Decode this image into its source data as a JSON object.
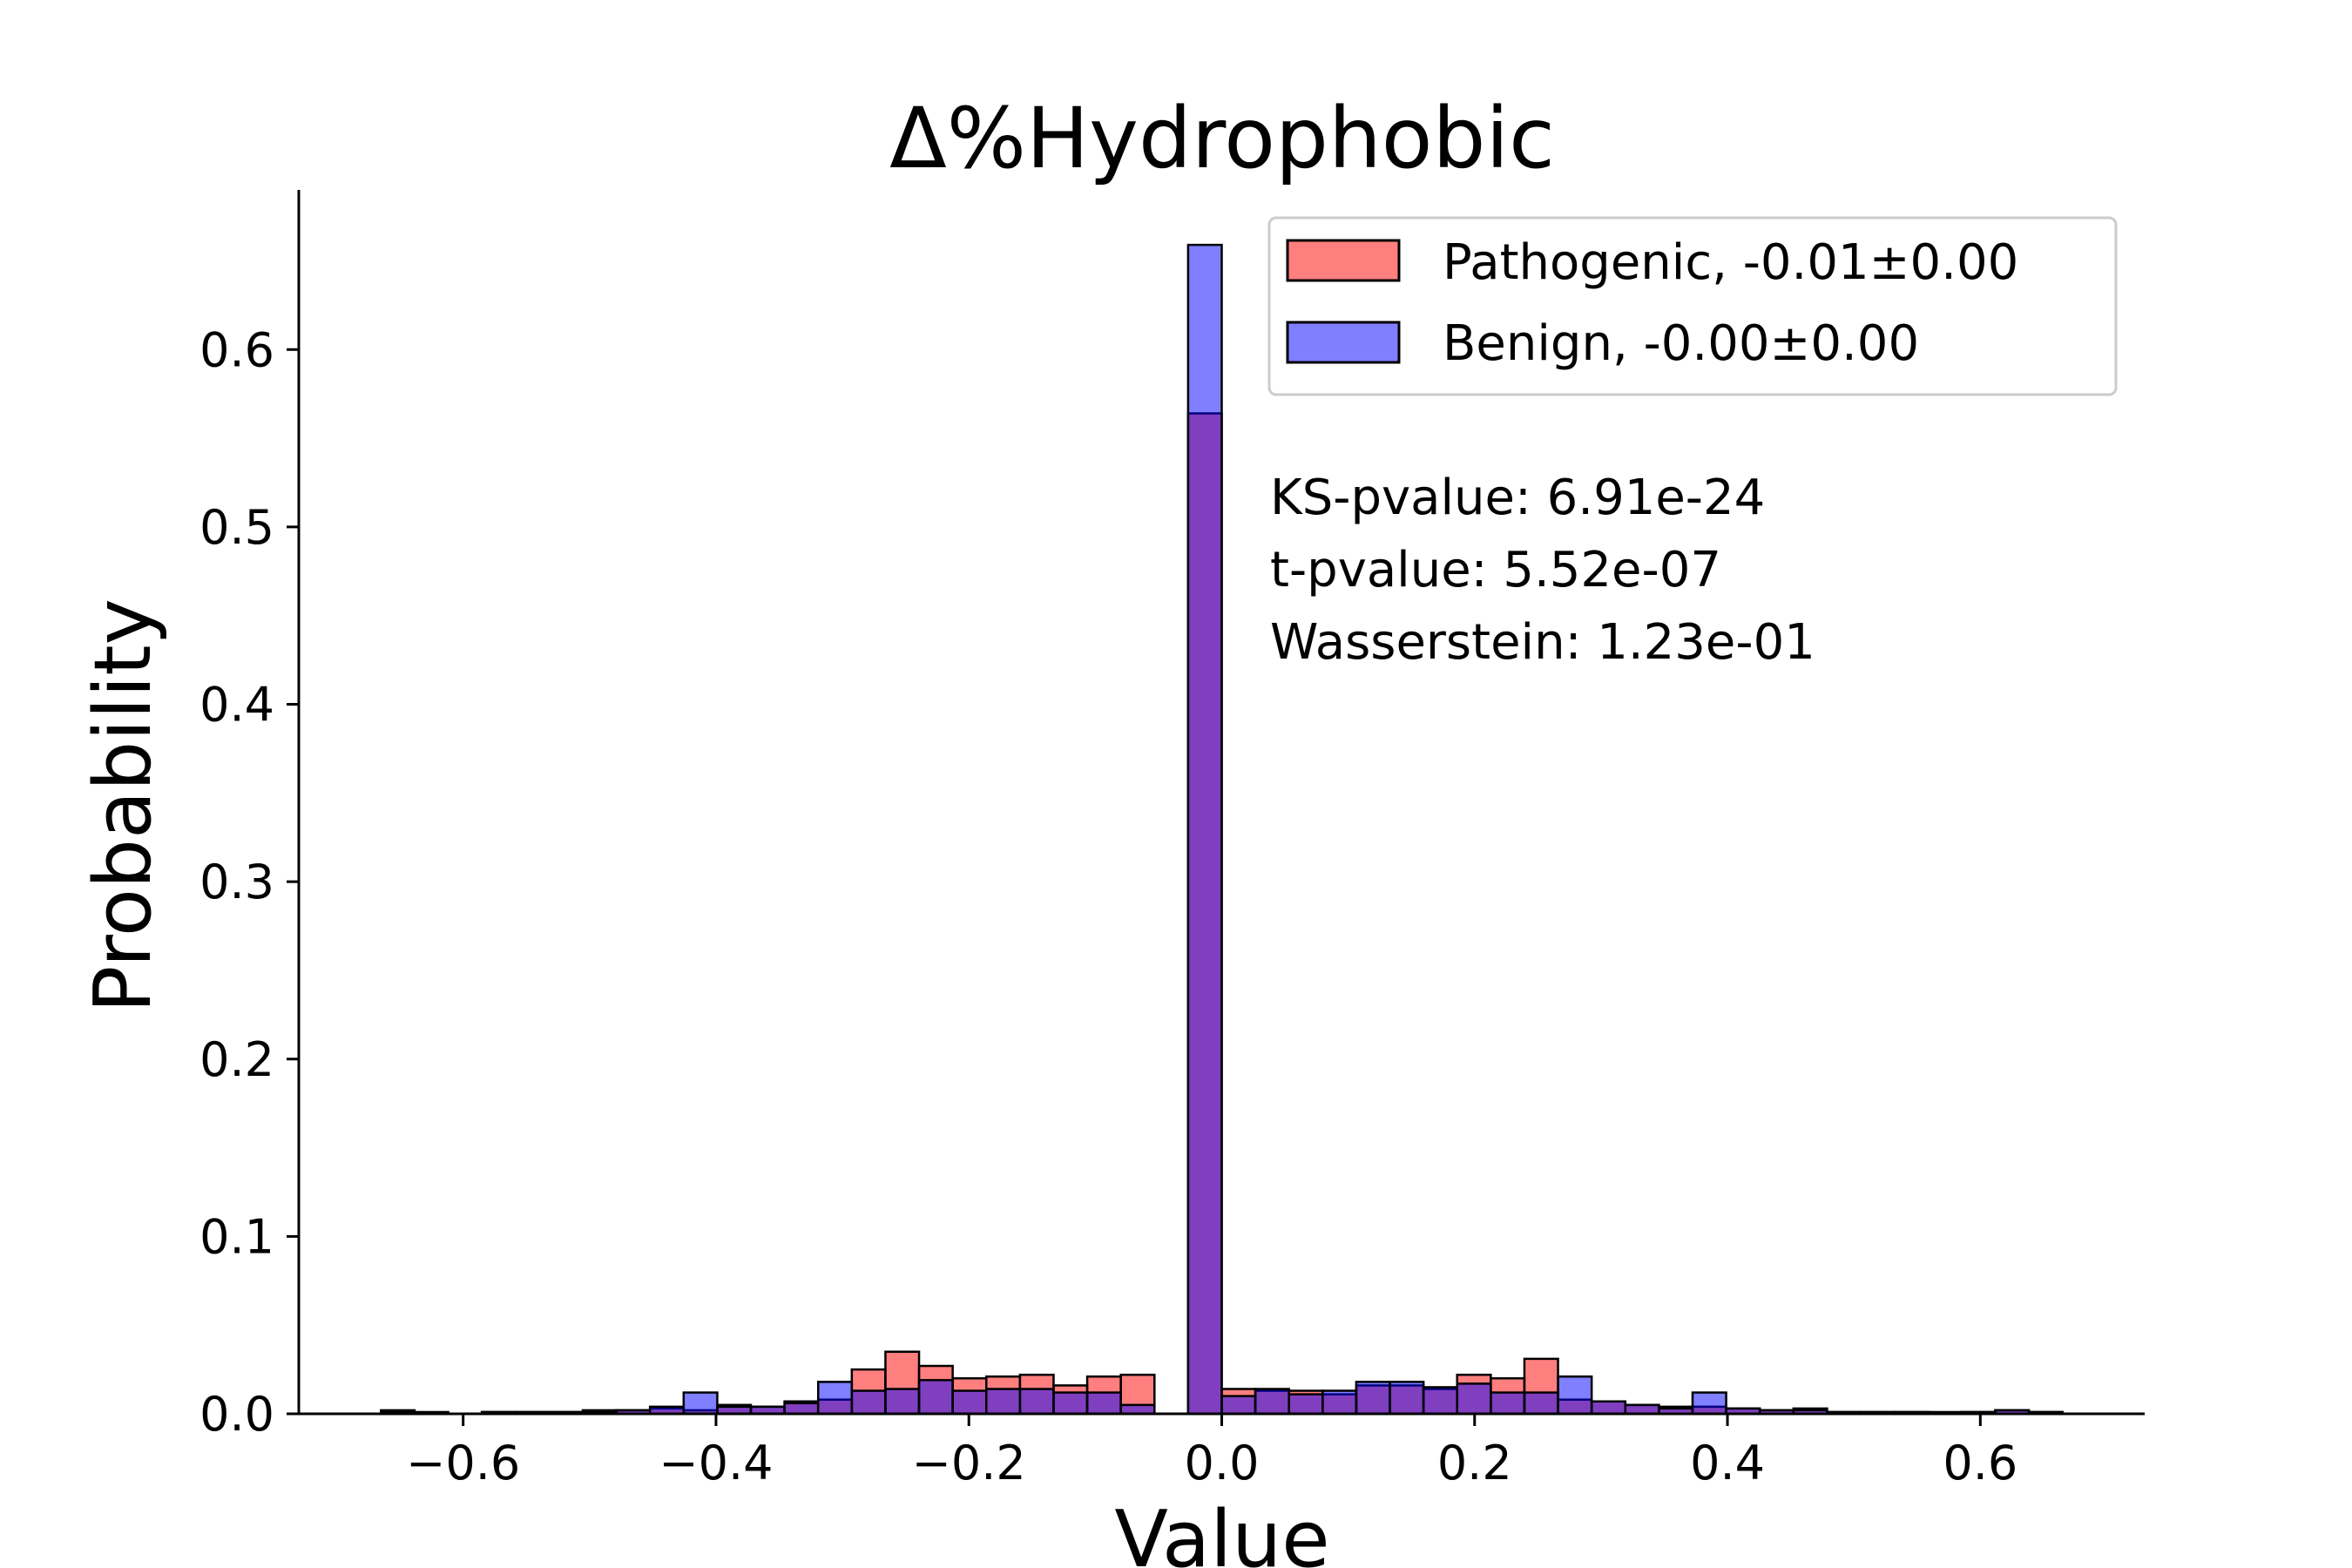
{
  "chart_data": {
    "type": "bar",
    "title": "Δ%Hydrophobic",
    "xlabel": "Value",
    "ylabel": "Probability",
    "xlim": [
      -0.73,
      0.73
    ],
    "ylim": [
      0,
      0.69
    ],
    "xticks": [
      -0.6,
      -0.4,
      -0.2,
      0.0,
      0.2,
      0.4,
      0.6
    ],
    "xtick_labels": [
      "−0.6",
      "−0.4",
      "−0.2",
      "0.0",
      "0.2",
      "0.4",
      "0.6"
    ],
    "yticks": [
      0.0,
      0.1,
      0.2,
      0.3,
      0.4,
      0.5,
      0.6
    ],
    "ytick_labels": [
      "0.0",
      "0.1",
      "0.2",
      "0.3",
      "0.4",
      "0.5",
      "0.6"
    ],
    "bin_width": 0.0266,
    "bin_start": -0.665,
    "series": [
      {
        "name": "Pathogenic, -0.01±0.00",
        "color": "#ff0000",
        "alpha": 0.5,
        "values": [
          0.002,
          0.001,
          0,
          0.001,
          0.001,
          0.001,
          0.002,
          0.002,
          0.003,
          0.002,
          0.005,
          0.004,
          0.007,
          0.008,
          0.025,
          0.035,
          0.027,
          0.02,
          0.021,
          0.022,
          0.016,
          0.021,
          0.022,
          0,
          0.564,
          0.014,
          0.013,
          0.013,
          0.011,
          0.016,
          0.016,
          0.014,
          0.022,
          0.02,
          0.031,
          0.008,
          0.007,
          0.005,
          0.004,
          0.004,
          0.003,
          0.002,
          0.003,
          0.001,
          0.001,
          0.001,
          0.001,
          0.001,
          0.002,
          0.001
        ]
      },
      {
        "name": "Benign, -0.00±0.00",
        "color": "#0000ff",
        "alpha": 0.5,
        "values": [
          0.001,
          0,
          0,
          0.001,
          0.001,
          0.001,
          0.001,
          0.002,
          0.004,
          0.012,
          0.004,
          0.004,
          0.006,
          0.018,
          0.013,
          0.014,
          0.019,
          0.013,
          0.014,
          0.014,
          0.012,
          0.012,
          0.005,
          0,
          0.659,
          0.01,
          0.014,
          0.011,
          0.013,
          0.018,
          0.018,
          0.015,
          0.017,
          0.012,
          0.012,
          0.021,
          0.007,
          0.005,
          0.003,
          0.012,
          0.003,
          0.002,
          0.002,
          0.001,
          0.001,
          0.001,
          0,
          0.001,
          0.002,
          0.001
        ]
      }
    ],
    "legend_position": "upper right",
    "annotation": [
      "KS-pvalue: 6.91e-24",
      "t-pvalue: 5.52e-07",
      "Wasserstein: 1.23e-01"
    ],
    "grid": false
  }
}
